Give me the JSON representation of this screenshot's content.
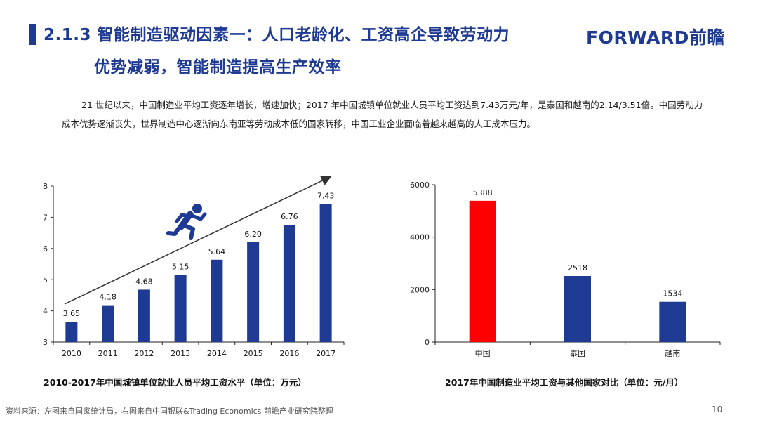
{
  "header": {
    "title_line1": "2.1.3 智能制造驱动因素一：人口老龄化、工资高企导致劳动力",
    "title_line2": "优势减弱，智能制造提高生产效率",
    "logo": "FORWARD前瞻"
  },
  "body_text": "21 世纪以来，中国制造业平均工资逐年增长，增速加快；2017 年中国城镇单位就业人员平均工资达到7.43万元/年，是泰国和越南的2.14/3.51倍。中国劳动力成本优势逐渐丧失，世界制造中心逐渐向东南亚等劳动成本低的国家转移，中国工业企业面临着越来越高的人工成本压力。",
  "chart_data": [
    {
      "type": "bar",
      "title": "2010-2017年中国城镇单位就业人员平均工资水平（单位：万元）",
      "categories": [
        "2010",
        "2011",
        "2012",
        "2013",
        "2014",
        "2015",
        "2016",
        "2017"
      ],
      "values": [
        3.65,
        4.18,
        4.68,
        5.15,
        5.64,
        6.2,
        6.76,
        7.43
      ],
      "data_labels": [
        "3.65",
        "4.18",
        "4.68",
        "5.15",
        "5.64",
        "6.20",
        "6.76",
        "7.43"
      ],
      "ylim": [
        3,
        8
      ],
      "yticks": [
        3,
        4,
        5,
        6,
        7,
        8
      ],
      "bar_color": "#1f3a93",
      "trend_arrow": true,
      "icon": "running-person-icon",
      "grid": false
    },
    {
      "type": "bar",
      "title": "2017年中国制造业平均工资与其他国家对比（单位：元/月）",
      "categories": [
        "中国",
        "泰国",
        "越南"
      ],
      "values": [
        5388,
        2518,
        1534
      ],
      "data_labels": [
        "5388",
        "2518",
        "1534"
      ],
      "ylim": [
        0,
        6000
      ],
      "yticks": [
        0,
        2000,
        4000,
        6000
      ],
      "bar_colors": [
        "#ff0000",
        "#1f3a93",
        "#1f3a93"
      ],
      "grid": false
    }
  ],
  "footer": {
    "source": "资料来源：左图来自国家统计局，右图来自中国银联&Trading Economics 前瞻产业研究院整理",
    "page_number": "10"
  }
}
